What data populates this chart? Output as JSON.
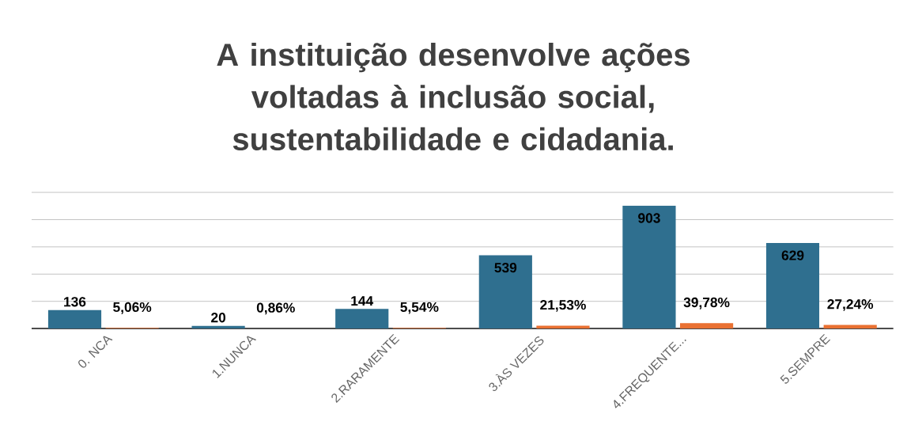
{
  "chart_data": {
    "type": "bar",
    "title": "A instituição desenvolve ações voltadas à inclusão social, sustentabilidade e cidadania.",
    "categories": [
      "0. NCA",
      "1.NUNCA",
      "2.RARAMENTE",
      "3.ÀS VEZES",
      "4.FREQUENTE...",
      "5.SEMPRE"
    ],
    "series": [
      {
        "color": "#2f6f8f",
        "values": [
          136,
          20,
          144,
          539,
          903,
          629
        ]
      },
      {
        "color": "#e97132",
        "values": [
          5.06,
          0.86,
          5.54,
          21.53,
          39.78,
          27.24
        ],
        "value_labels": [
          "5,06%",
          "0,86%",
          "5,54%",
          "21,53%",
          "39,78%",
          "27,24%"
        ]
      }
    ],
    "data_labels": true,
    "ylim": [
      0,
      1000
    ],
    "yticks": [
      {
        "value": 0,
        "label": null
      },
      {
        "value": 200,
        "label": null
      },
      {
        "value": 400,
        "label": null
      },
      {
        "value": 600,
        "label": null
      },
      {
        "value": 800,
        "label": null
      },
      {
        "value": 1000,
        "label": null
      }
    ],
    "grid": "y",
    "tick_labels": "x"
  }
}
